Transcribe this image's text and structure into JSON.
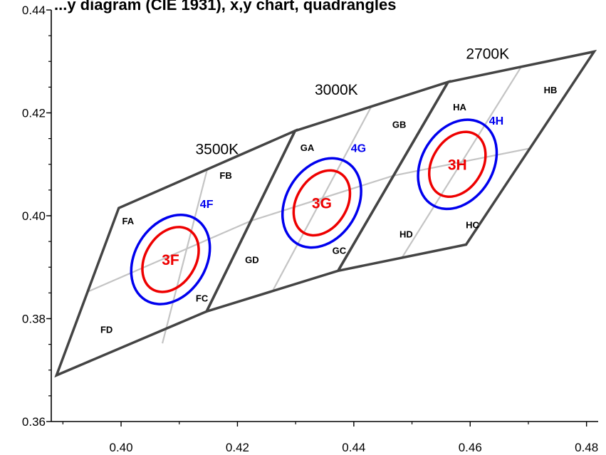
{
  "chart_data": {
    "type": "diagram",
    "title": "...y diagram (CIE 1931), x,y chart, quadrangles",
    "xlim": [
      0.388,
      0.482
    ],
    "ylim": [
      0.36,
      0.44
    ],
    "x_ticks": [
      "0.40",
      "0.42",
      "0.44",
      "0.46",
      "0.48"
    ],
    "x_tick_values": [
      0.4,
      0.42,
      0.44,
      0.46,
      0.48
    ],
    "y_ticks": [
      "0.36",
      "0.38",
      "0.40",
      "0.42",
      "0.44"
    ],
    "y_tick_values": [
      0.36,
      0.38,
      0.4,
      0.42,
      0.44
    ],
    "colors": {
      "quad": "#444444",
      "sub": "#c4c4c4",
      "step4": "#0000ee",
      "step3": "#ee0000"
    },
    "cct_labels": [
      {
        "text": "3500K",
        "x": 0.4165,
        "y": 0.412
      },
      {
        "text": "3000K",
        "x": 0.437,
        "y": 0.4235
      },
      {
        "text": "2700K",
        "x": 0.463,
        "y": 0.4305
      }
    ],
    "quadrangles": [
      {
        "name": "3500K",
        "points": [
          [
            0.3889,
            0.369
          ],
          [
            0.3996,
            0.4015
          ],
          [
            0.4299,
            0.4165
          ],
          [
            0.4147,
            0.3814
          ]
        ]
      },
      {
        "name": "3000K",
        "points": [
          [
            0.4147,
            0.3814
          ],
          [
            0.4299,
            0.4165
          ],
          [
            0.4562,
            0.426
          ],
          [
            0.4373,
            0.3893
          ]
        ]
      },
      {
        "name": "2700K",
        "points": [
          [
            0.4373,
            0.3893
          ],
          [
            0.4562,
            0.426
          ],
          [
            0.4813,
            0.4319
          ],
          [
            0.4593,
            0.3944
          ]
        ]
      }
    ],
    "sub_lines": [
      [
        [
          0.3942,
          0.3852
        ],
        [
          0.4223,
          0.399
        ]
      ],
      [
        [
          0.4071,
          0.3752
        ],
        [
          0.4148,
          0.409
        ]
      ],
      [
        [
          0.4223,
          0.399
        ],
        [
          0.4468,
          0.4078
        ]
      ],
      [
        [
          0.426,
          0.3853
        ],
        [
          0.443,
          0.4212
        ]
      ],
      [
        [
          0.4468,
          0.4078
        ],
        [
          0.4703,
          0.4131
        ]
      ],
      [
        [
          0.4483,
          0.3919
        ],
        [
          0.4688,
          0.429
        ]
      ]
    ],
    "bins": [
      {
        "text": "FA",
        "x": 0.4012,
        "y": 0.399
      },
      {
        "text": "FB",
        "x": 0.418,
        "y": 0.4079
      },
      {
        "text": "FC",
        "x": 0.4139,
        "y": 0.384
      },
      {
        "text": "FD",
        "x": 0.3975,
        "y": 0.3779
      },
      {
        "text": "GA",
        "x": 0.432,
        "y": 0.4133
      },
      {
        "text": "GB",
        "x": 0.4478,
        "y": 0.4178
      },
      {
        "text": "GC",
        "x": 0.4375,
        "y": 0.3933
      },
      {
        "text": "GD",
        "x": 0.4225,
        "y": 0.3915
      },
      {
        "text": "HA",
        "x": 0.4582,
        "y": 0.4212
      },
      {
        "text": "HB",
        "x": 0.4738,
        "y": 0.4245
      },
      {
        "text": "HC",
        "x": 0.4604,
        "y": 0.3983
      },
      {
        "text": "HD",
        "x": 0.449,
        "y": 0.3965
      }
    ],
    "ellipses": [
      {
        "label": "4F",
        "step": 4,
        "cx": 0.4085,
        "cy": 0.3915,
        "rx": 0.0082,
        "ry": 0.0061,
        "rot": -58,
        "lx": 0.4147,
        "ly": 0.4023
      },
      {
        "label": "3F",
        "step": 3,
        "cx": 0.4085,
        "cy": 0.3915,
        "rx": 0.006,
        "ry": 0.0043,
        "rot": -58,
        "lx": 0.4085,
        "ly": 0.3915
      },
      {
        "label": "4G",
        "step": 4,
        "cx": 0.4345,
        "cy": 0.4025,
        "rx": 0.0082,
        "ry": 0.0061,
        "rot": -58,
        "lx": 0.4408,
        "ly": 0.4132
      },
      {
        "label": "3G",
        "step": 3,
        "cx": 0.4345,
        "cy": 0.4025,
        "rx": 0.006,
        "ry": 0.0043,
        "rot": -58,
        "lx": 0.4345,
        "ly": 0.4025
      },
      {
        "label": "4H",
        "step": 4,
        "cx": 0.4578,
        "cy": 0.41,
        "rx": 0.0082,
        "ry": 0.0061,
        "rot": -58,
        "lx": 0.4645,
        "ly": 0.4185
      },
      {
        "label": "3H",
        "step": 3,
        "cx": 0.4578,
        "cy": 0.41,
        "rx": 0.006,
        "ry": 0.0043,
        "rot": -58,
        "lx": 0.4578,
        "ly": 0.41
      }
    ]
  }
}
